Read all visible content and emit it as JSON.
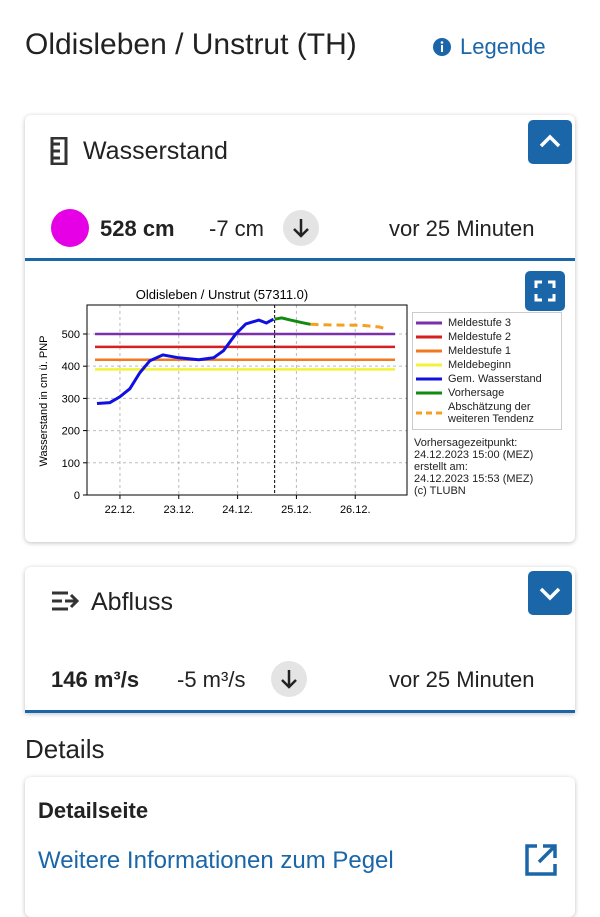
{
  "header": {
    "title": "Oldisleben / Unstrut (TH)",
    "legend_link": "Legende"
  },
  "wasserstand": {
    "title": "Wasserstand",
    "value": "528 cm",
    "change": "-7 cm",
    "time": "vor 25 Minuten"
  },
  "chart_data": {
    "type": "line",
    "title": "Oldisleben / Unstrut (57311.0)",
    "ylabel": "Wasserstand in cm ü. PNP",
    "xlim": [
      21.44,
      26.88
    ],
    "ylim": [
      0,
      590
    ],
    "xticks": [
      {
        "value": 22,
        "label": "22.12."
      },
      {
        "value": 23,
        "label": "23.12."
      },
      {
        "value": 24,
        "label": "24.12."
      },
      {
        "value": 25,
        "label": "25.12."
      },
      {
        "value": 26,
        "label": "26.12."
      }
    ],
    "yticks": [
      0,
      100,
      200,
      300,
      400,
      500
    ],
    "grid": true,
    "thresholds": [
      {
        "name": "Meldestufe 3",
        "color": "#7b2fa8",
        "value": 500
      },
      {
        "name": "Meldestufe 2",
        "color": "#d62020",
        "value": 460
      },
      {
        "name": "Meldestufe 1",
        "color": "#f07a20",
        "value": 420
      },
      {
        "name": "Meldebeginn",
        "color": "#f2f23a",
        "value": 390
      }
    ],
    "series": [
      {
        "name": "Gem. Wasserstand",
        "color": "#1010e0",
        "dash": false,
        "x": [
          21.61,
          21.83,
          22.0,
          22.17,
          22.34,
          22.51,
          22.73,
          23.0,
          23.34,
          23.59,
          23.76,
          23.97,
          24.14,
          24.36,
          24.49,
          24.61
        ],
        "values": [
          284,
          287,
          305,
          330,
          380,
          417,
          435,
          426,
          420,
          426,
          448,
          500,
          531,
          543,
          534,
          546
        ]
      },
      {
        "name": "Vorhersage",
        "color": "#108a10",
        "dash": false,
        "x": [
          24.63,
          24.75,
          24.9,
          25.1,
          25.24
        ],
        "values": [
          546,
          550,
          543,
          535,
          530
        ]
      },
      {
        "name": "Abschätzung der weiteren Tendenz",
        "color": "#f5a020",
        "dash": true,
        "x": [
          25.24,
          25.6,
          26.1,
          26.4,
          26.55
        ],
        "values": [
          530,
          528,
          527,
          522,
          515
        ]
      }
    ],
    "forecast_x": 24.63,
    "annotations": [
      "Vorhersagezeitpunkt:",
      "24.12.2023 15:00 (MEZ)",
      "erstellt am:",
      "24.12.2023 15:53 (MEZ)",
      "(c) TLUBN"
    ]
  },
  "abfluss": {
    "title": "Abfluss",
    "value": "146 m³/s",
    "change": "-5 m³/s",
    "time": "vor 25 Minuten"
  },
  "details": {
    "heading": "Details",
    "card_title": "Detailseite",
    "link": "Weitere Informationen zum Pegel"
  }
}
